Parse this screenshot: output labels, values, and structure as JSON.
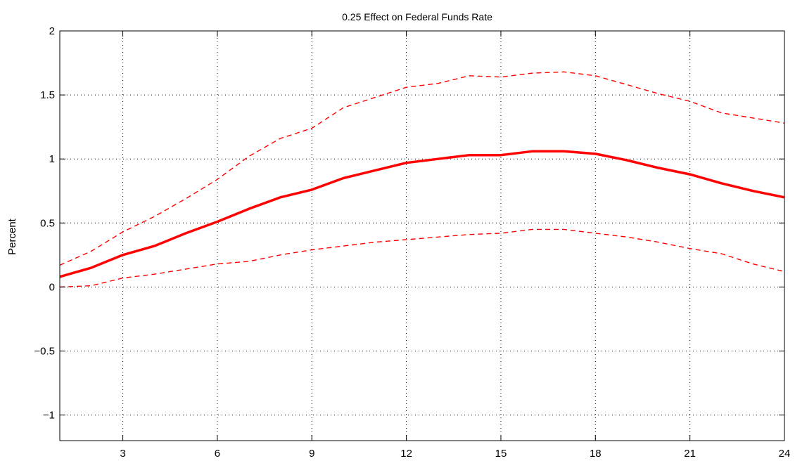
{
  "chart_data": {
    "type": "line",
    "title": "0.25 Effect on Federal Funds Rate",
    "xlabel": "",
    "ylabel": "Percent",
    "xlim": [
      1,
      24
    ],
    "ylim": [
      -1.2,
      2.0
    ],
    "xticks": [
      3,
      6,
      9,
      12,
      15,
      18,
      21,
      24
    ],
    "yticks": [
      -1,
      -0.5,
      0,
      0.5,
      1,
      1.5,
      2
    ],
    "ytick_labels": [
      "−1",
      "−0.5",
      "0",
      "0.5",
      "1",
      "1.5",
      "2"
    ],
    "grid": true,
    "x": [
      1,
      2,
      3,
      4,
      5,
      6,
      7,
      8,
      9,
      10,
      11,
      12,
      13,
      14,
      15,
      16,
      17,
      18,
      19,
      20,
      21,
      22,
      23,
      24
    ],
    "series": [
      {
        "role": "estimate",
        "style": "solid",
        "color": "#ff0000",
        "values": [
          0.08,
          0.15,
          0.25,
          0.32,
          0.42,
          0.51,
          0.61,
          0.7,
          0.76,
          0.85,
          0.91,
          0.97,
          1.0,
          1.03,
          1.03,
          1.06,
          1.06,
          1.04,
          0.99,
          0.93,
          0.88,
          0.81,
          0.75,
          0.7
        ]
      },
      {
        "role": "upper-band",
        "style": "dashed",
        "color": "#ff0000",
        "values": [
          0.17,
          0.28,
          0.43,
          0.55,
          0.69,
          0.84,
          1.02,
          1.16,
          1.24,
          1.4,
          1.48,
          1.56,
          1.59,
          1.65,
          1.64,
          1.67,
          1.68,
          1.65,
          1.58,
          1.51,
          1.45,
          1.36,
          1.32,
          1.28
        ]
      },
      {
        "role": "lower-band",
        "style": "dashed",
        "color": "#ff0000",
        "values": [
          0.0,
          0.01,
          0.07,
          0.1,
          0.14,
          0.18,
          0.2,
          0.25,
          0.29,
          0.32,
          0.35,
          0.37,
          0.39,
          0.41,
          0.42,
          0.45,
          0.45,
          0.42,
          0.39,
          0.35,
          0.3,
          0.26,
          0.18,
          0.12
        ]
      }
    ]
  }
}
